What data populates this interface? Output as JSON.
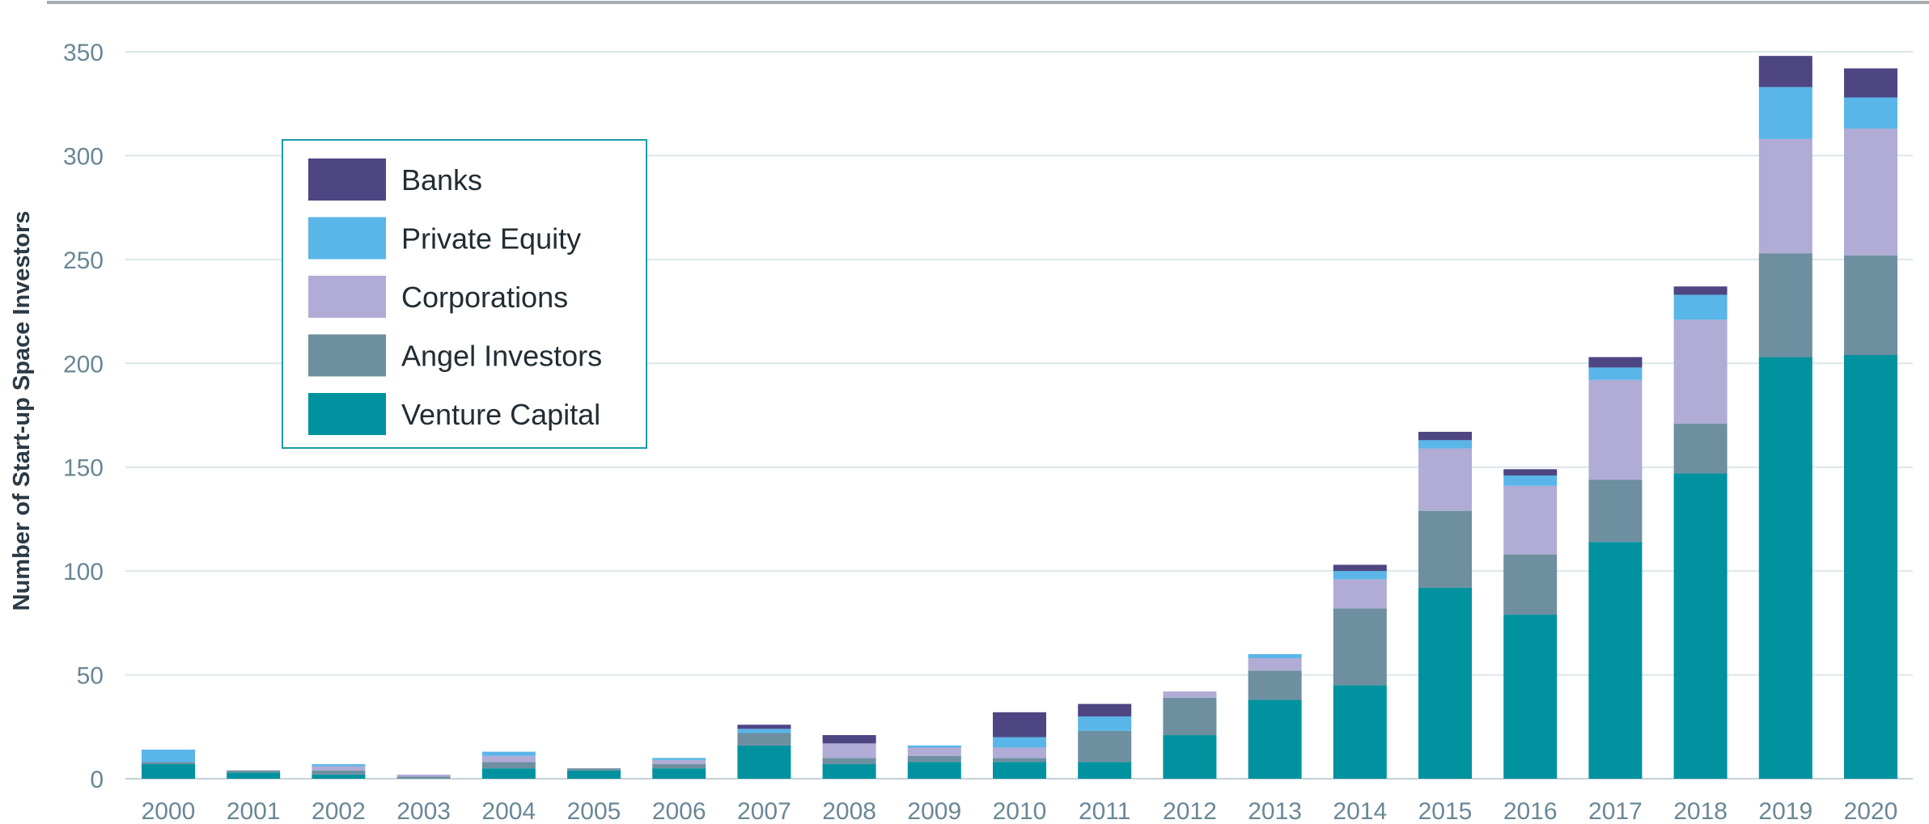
{
  "chart_data": {
    "type": "bar",
    "stacked": true,
    "ylabel": "Number of Start-up Space Investors",
    "xlabel": "",
    "ylim": [
      0,
      350
    ],
    "yticks": [
      0,
      50,
      100,
      150,
      200,
      250,
      300,
      350
    ],
    "grid": true,
    "legend_position": "top-left",
    "categories": [
      "2000",
      "2001",
      "2002",
      "2003",
      "2004",
      "2005",
      "2006",
      "2007",
      "2008",
      "2009",
      "2010",
      "2011",
      "2012",
      "2013",
      "2014",
      "2015",
      "2016",
      "2017",
      "2018",
      "2019",
      "2020"
    ],
    "series": [
      {
        "name": "Venture Capital",
        "color": "#00929f",
        "values": [
          7,
          3,
          2,
          0,
          5,
          4,
          5,
          16,
          7,
          8,
          8,
          8,
          21,
          38,
          45,
          92,
          79,
          114,
          147,
          203,
          204
        ]
      },
      {
        "name": "Angel Investors",
        "color": "#6e8fa0",
        "values": [
          1,
          1,
          2,
          1,
          3,
          1,
          2,
          6,
          3,
          3,
          2,
          15,
          18,
          14,
          37,
          37,
          29,
          30,
          24,
          50,
          48
        ]
      },
      {
        "name": "Corporations",
        "color": "#b0acd6",
        "values": [
          0,
          0,
          2,
          1,
          3,
          0,
          2,
          0,
          7,
          4,
          5,
          0,
          3,
          6,
          14,
          30,
          33,
          48,
          50,
          55,
          61
        ]
      },
      {
        "name": "Private Equity",
        "color": "#5ab5e8",
        "values": [
          6,
          0,
          1,
          0,
          2,
          0,
          1,
          2,
          0,
          1,
          5,
          7,
          0,
          2,
          4,
          4,
          5,
          6,
          12,
          25,
          15
        ]
      },
      {
        "name": "Banks",
        "color": "#4e4583",
        "values": [
          0,
          0,
          0,
          0,
          0,
          0,
          0,
          2,
          4,
          0,
          12,
          6,
          0,
          0,
          3,
          4,
          3,
          5,
          4,
          15,
          14
        ]
      }
    ],
    "legend_order": [
      "Banks",
      "Private Equity",
      "Corporations",
      "Angel Investors",
      "Venture Capital"
    ]
  }
}
